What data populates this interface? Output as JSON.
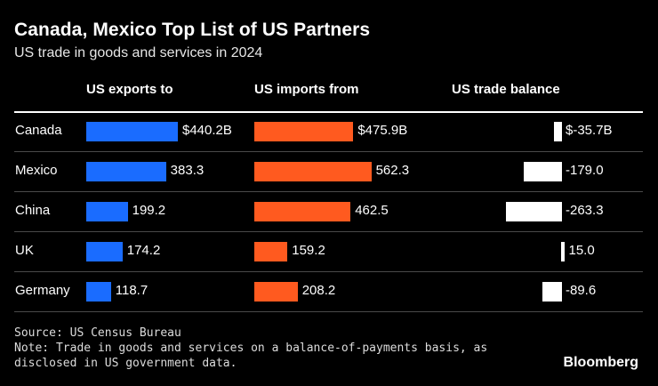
{
  "title": "Canada, Mexico Top List of US Partners",
  "subtitle": "US trade in goods and services in 2024",
  "columns": [
    "US exports to",
    "US imports from",
    "US trade balance"
  ],
  "colors": {
    "exports": "#1a6cff",
    "imports": "#ff5a1f",
    "balance": "#ffffff",
    "background": "#000000"
  },
  "chart_data": {
    "type": "bar",
    "title": "Canada, Mexico Top List of US Partners",
    "subtitle": "US trade in goods and services in 2024",
    "categories": [
      "Canada",
      "Mexico",
      "China",
      "UK",
      "Germany"
    ],
    "series": [
      {
        "name": "US exports to",
        "values": [
          440.2,
          383.3,
          199.2,
          174.2,
          118.7
        ],
        "labels": [
          "$440.2B",
          "383.3",
          "199.2",
          "174.2",
          "118.7"
        ]
      },
      {
        "name": "US imports from",
        "values": [
          475.9,
          562.3,
          462.5,
          159.2,
          208.2
        ],
        "labels": [
          "$475.9B",
          "562.3",
          "462.5",
          "159.2",
          "208.2"
        ]
      },
      {
        "name": "US trade balance",
        "values": [
          -35.7,
          -179.0,
          -263.3,
          15.0,
          -89.6
        ],
        "labels": [
          "$-35.7B",
          "-179.0",
          "-263.3",
          "15.0",
          "-89.6"
        ]
      }
    ]
  },
  "source": "Source: US Census Bureau",
  "note_line1": "Note: Trade in goods and services on a balance-of-payments basis, as",
  "note_line2": "disclosed in US government data.",
  "brand": "Bloomberg"
}
